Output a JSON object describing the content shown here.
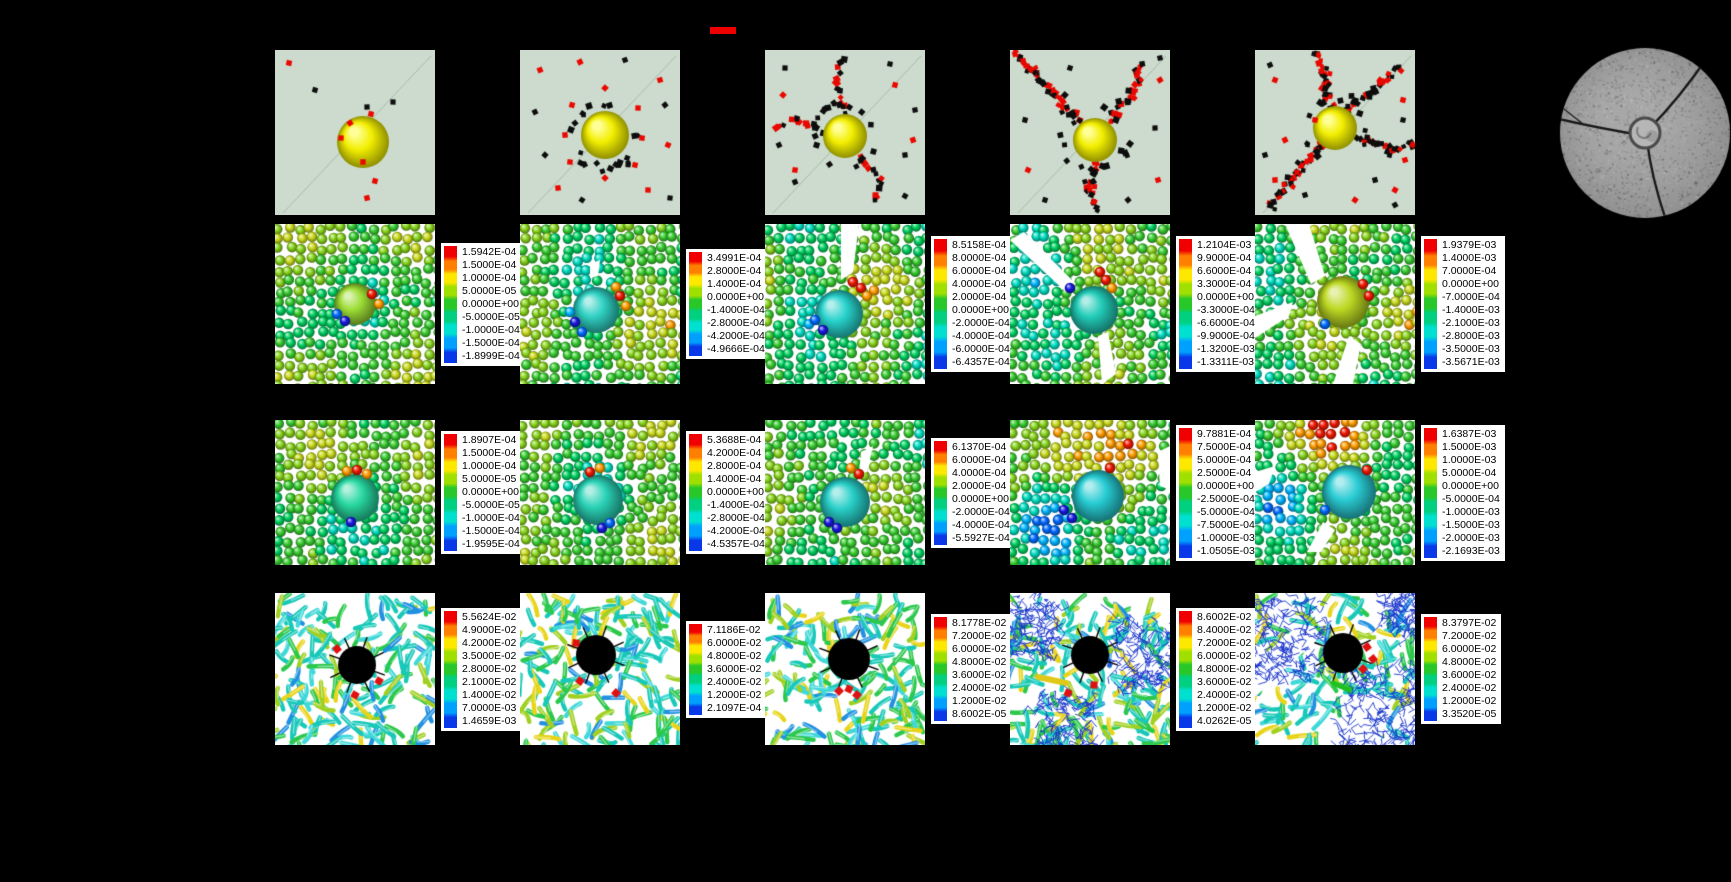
{
  "legend": {
    "marker_color": "#ee0000"
  },
  "colorbars": {
    "row2": [
      [
        "1.5942E-04",
        "1.5000E-04",
        "1.0000E-04",
        "5.0000E-05",
        "0.0000E+00",
        "-5.0000E-05",
        "-1.0000E-04",
        "-1.5000E-04",
        "-1.8999E-04"
      ],
      [
        "3.4991E-04",
        "2.8000E-04",
        "1.4000E-04",
        "0.0000E+00",
        "-1.4000E-04",
        "-2.8000E-04",
        "-4.2000E-04",
        "-4.9666E-04"
      ],
      [
        "8.5158E-04",
        "8.0000E-04",
        "6.0000E-04",
        "4.0000E-04",
        "2.0000E-04",
        "0.0000E+00",
        "-2.0000E-04",
        "-4.0000E-04",
        "-6.0000E-04",
        "-6.4357E-04"
      ],
      [
        "1.2104E-03",
        "9.9000E-04",
        "6.6000E-04",
        "3.3000E-04",
        "0.0000E+00",
        "-3.3000E-04",
        "-6.6000E-04",
        "-9.9000E-04",
        "-1.3200E-03",
        "-1.3311E-03"
      ],
      [
        "1.9379E-03",
        "1.4000E-03",
        "7.0000E-04",
        "0.0000E+00",
        "-7.0000E-04",
        "-1.4000E-03",
        "-2.1000E-03",
        "-2.8000E-03",
        "-3.5000E-03",
        "-3.5671E-03"
      ]
    ],
    "row3": [
      [
        "1.8907E-04",
        "1.5000E-04",
        "1.0000E-04",
        "5.0000E-05",
        "0.0000E+00",
        "-5.0000E-05",
        "-1.0000E-04",
        "-1.5000E-04",
        "-1.9595E-04"
      ],
      [
        "5.3688E-04",
        "4.2000E-04",
        "2.8000E-04",
        "1.4000E-04",
        "0.0000E+00",
        "-1.4000E-04",
        "-2.8000E-04",
        "-4.2000E-04",
        "-4.5357E-04"
      ],
      [
        "6.1370E-04",
        "6.0000E-04",
        "4.0000E-04",
        "2.0000E-04",
        "0.0000E+00",
        "-2.0000E-04",
        "-4.0000E-04",
        "-5.5927E-04"
      ],
      [
        "9.7881E-04",
        "7.5000E-04",
        "5.0000E-04",
        "2.5000E-04",
        "0.0000E+00",
        "-2.5000E-04",
        "-5.0000E-04",
        "-7.5000E-04",
        "-1.0000E-03",
        "-1.0505E-03"
      ],
      [
        "1.6387E-03",
        "1.5000E-03",
        "1.0000E-03",
        "5.0000E-04",
        "0.0000E+00",
        "-5.0000E-04",
        "-1.0000E-03",
        "-1.5000E-03",
        "-2.0000E-03",
        "-2.1693E-03"
      ]
    ],
    "row4": [
      [
        "5.5624E-02",
        "4.9000E-02",
        "4.2000E-02",
        "3.5000E-02",
        "2.8000E-02",
        "2.1000E-02",
        "1.4000E-02",
        "7.0000E-03",
        "1.4659E-03"
      ],
      [
        "7.1186E-02",
        "6.0000E-02",
        "4.8000E-02",
        "3.6000E-02",
        "2.4000E-02",
        "1.2000E-02",
        "2.1097E-04"
      ],
      [
        "8.1778E-02",
        "7.2000E-02",
        "6.0000E-02",
        "4.8000E-02",
        "3.6000E-02",
        "2.4000E-02",
        "1.2000E-02",
        "8.6002E-05"
      ],
      [
        "8.6002E-02",
        "8.4000E-02",
        "7.2000E-02",
        "6.0000E-02",
        "4.8000E-02",
        "3.6000E-02",
        "2.4000E-02",
        "1.2000E-02",
        "4.0262E-05"
      ],
      [
        "8.3797E-02",
        "7.2000E-02",
        "6.0000E-02",
        "4.8000E-02",
        "3.6000E-02",
        "2.4000E-02",
        "1.2000E-02",
        "3.3520E-05"
      ]
    ]
  }
}
